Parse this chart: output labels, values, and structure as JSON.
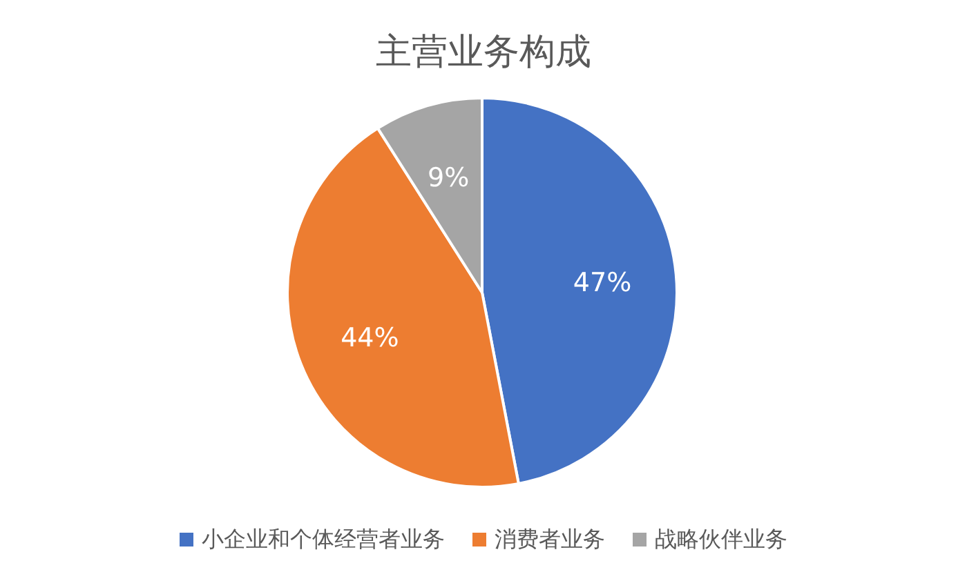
{
  "chart_data": {
    "type": "pie",
    "title": "主营业务构成",
    "categories": [
      "小企业和个体经营者业务",
      "消费者业务",
      "战略伙伴业务"
    ],
    "values": [
      47,
      44,
      9
    ],
    "colors": [
      "#4472c4",
      "#ed7d31",
      "#a5a5a5"
    ],
    "value_labels": [
      "47%",
      "44%",
      "9%"
    ],
    "legend": "bottom"
  }
}
